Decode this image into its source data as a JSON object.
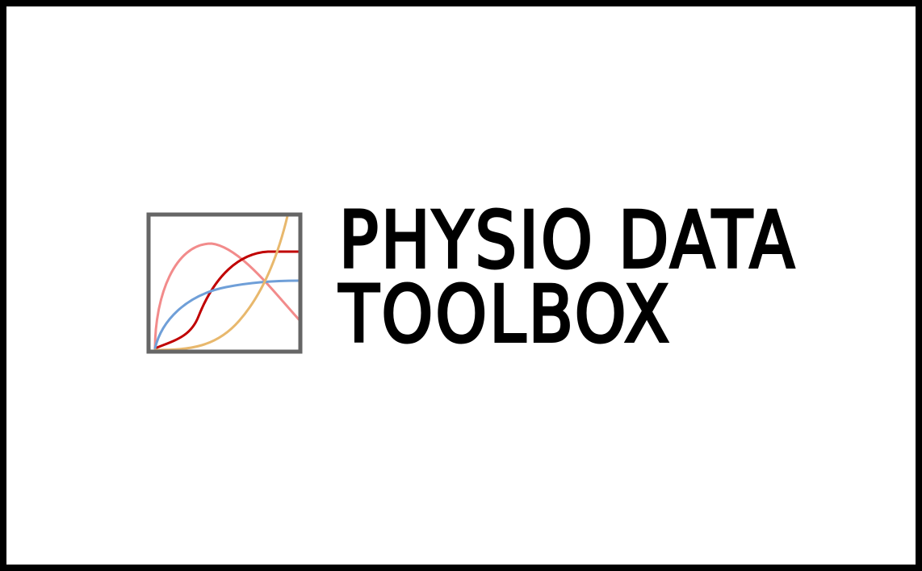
{
  "logo": {
    "icon": "line-chart-icon",
    "colors": {
      "frame": "#666666",
      "pink": "#f28b8b",
      "red": "#c00000",
      "blue": "#6f9fd8",
      "orange": "#e8b86d"
    }
  },
  "title": {
    "line1": "PHYSIO DATA",
    "line2": "TOOLBOX"
  }
}
